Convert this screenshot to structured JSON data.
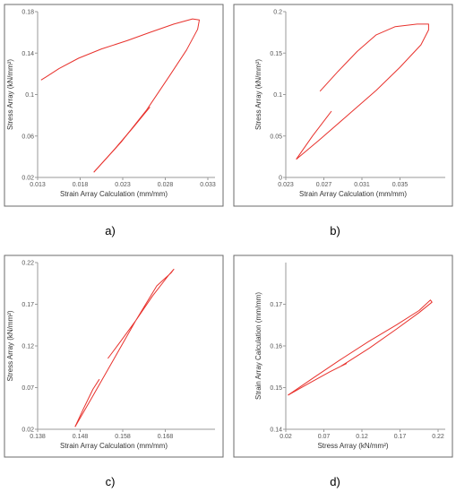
{
  "chart_data": [
    {
      "type": "line",
      "caption": "a)",
      "xlabel": "Strain Array Calculation (mm/mm)",
      "ylabel": "Stress Array (kN/mm²)",
      "xlim": [
        0.013,
        0.033
      ],
      "ylim": [
        0.02,
        0.18
      ],
      "xticks": [
        "0.013",
        "0.018",
        "0.023",
        "0.028",
        "0.033"
      ],
      "yticks": [
        "0.02",
        "0.06",
        "0.1",
        "0.14",
        "0.18"
      ],
      "color": "#e8322d",
      "series": [
        {
          "x": [
            0.0196,
            0.0228,
            0.0258,
            0.0285,
            0.0305,
            0.0318,
            0.032,
            0.0312,
            0.029,
            0.0262,
            0.0235,
            0.0205,
            0.0178,
            0.0155,
            0.014,
            0.0134
          ],
          "y": [
            0.025,
            0.054,
            0.085,
            0.118,
            0.143,
            0.163,
            0.172,
            0.173,
            0.168,
            0.16,
            0.152,
            0.144,
            0.135,
            0.125,
            0.117,
            0.114
          ]
        },
        {
          "x": [
            0.0196,
            0.0218,
            0.0242,
            0.0262
          ],
          "y": [
            0.025,
            0.045,
            0.068,
            0.088
          ]
        }
      ]
    },
    {
      "type": "line",
      "caption": "b)",
      "xlabel": "Strain Array Calculation (mm/mm)",
      "ylabel": "Stress Array (kN/mm²)",
      "xlim": [
        0.023,
        0.039
      ],
      "ylim": [
        0.0,
        0.2
      ],
      "xticks": [
        "0.023",
        "0.027",
        "0.031",
        "0.035"
      ],
      "yticks": [
        "0",
        "0.05",
        "0.1",
        "0.15",
        "0.2"
      ],
      "color": "#e8322d",
      "series": [
        {
          "x": [
            0.0241,
            0.0265,
            0.0295,
            0.0325,
            0.035,
            0.0372,
            0.038,
            0.038,
            0.0368,
            0.0345,
            0.0325,
            0.0305,
            0.0285,
            0.0266
          ],
          "y": [
            0.022,
            0.045,
            0.075,
            0.105,
            0.133,
            0.16,
            0.178,
            0.185,
            0.185,
            0.182,
            0.172,
            0.152,
            0.128,
            0.104
          ]
        },
        {
          "x": [
            0.0241,
            0.0258,
            0.0278
          ],
          "y": [
            0.022,
            0.05,
            0.08
          ]
        }
      ]
    },
    {
      "type": "line",
      "caption": "c)",
      "xlabel": "Strain Array Calculation (mm/mm)",
      "ylabel": "Stress Array (kN/mm²)",
      "xlim": [
        0.138,
        0.178
      ],
      "ylim": [
        0.02,
        0.22
      ],
      "xticks": [
        "0.138",
        "0.148",
        "0.158",
        "0.168"
      ],
      "yticks": [
        "0.02",
        "0.07",
        "0.12",
        "0.17",
        "0.22"
      ],
      "color": "#e8322d",
      "series": [
        {
          "x": [
            0.1468,
            0.151,
            0.156,
            0.161,
            0.166,
            0.1694,
            0.17,
            0.1688,
            0.165,
            0.161,
            0.157,
            0.1545
          ],
          "y": [
            0.023,
            0.06,
            0.105,
            0.15,
            0.192,
            0.208,
            0.212,
            0.205,
            0.18,
            0.15,
            0.122,
            0.105
          ]
        },
        {
          "x": [
            0.1468,
            0.1488,
            0.151,
            0.1525
          ],
          "y": [
            0.023,
            0.045,
            0.068,
            0.08
          ]
        }
      ]
    },
    {
      "type": "line",
      "caption": "d)",
      "xlabel": "Stress Array (kN/mm²)",
      "ylabel": "Strain Array Calculation (mm/mm)",
      "xlim": [
        0.02,
        0.22
      ],
      "ylim": [
        0.14,
        0.18
      ],
      "xticks": [
        "0.02",
        "0.07",
        "0.12",
        "0.17",
        "0.22"
      ],
      "yticks": [
        "0.14",
        "0.15",
        "0.16",
        "0.17"
      ],
      "color": "#e8322d",
      "series": [
        {
          "x": [
            0.023,
            0.055,
            0.09,
            0.13,
            0.165,
            0.195,
            0.21,
            0.212,
            0.195,
            0.165,
            0.13,
            0.1,
            0.093
          ],
          "y": [
            0.1482,
            0.1522,
            0.1565,
            0.1612,
            0.165,
            0.1685,
            0.171,
            0.1705,
            0.168,
            0.164,
            0.1595,
            0.156,
            0.1552
          ]
        },
        {
          "x": [
            0.023,
            0.05,
            0.078,
            0.1
          ],
          "y": [
            0.1482,
            0.151,
            0.1538,
            0.1558
          ]
        }
      ]
    }
  ]
}
